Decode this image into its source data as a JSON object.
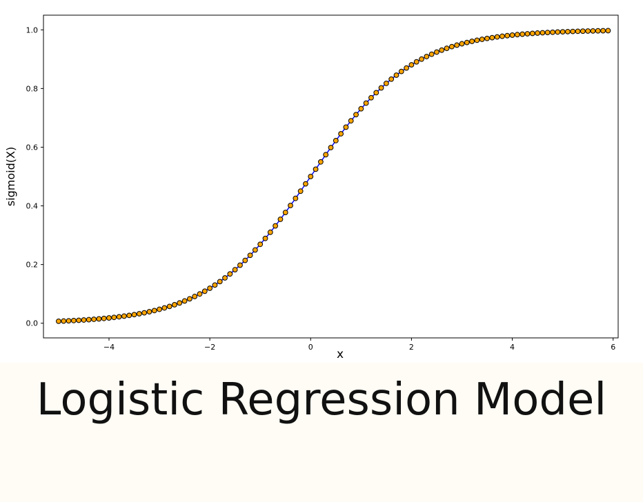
{
  "caption": "Logistic Regression Model",
  "chart_data": {
    "type": "line",
    "title": "",
    "xlabel": "x",
    "ylabel": "sigmoid(X)",
    "xlim": [
      -5.3,
      6.1
    ],
    "ylim": [
      -0.05,
      1.05
    ],
    "xticks": [
      -4,
      -2,
      0,
      2,
      4,
      6
    ],
    "xtick_labels": [
      "−4",
      "−2",
      "0",
      "2",
      "4",
      "6"
    ],
    "yticks": [
      0.0,
      0.2,
      0.4,
      0.6,
      0.8,
      1.0
    ],
    "ytick_labels": [
      "0.0",
      "0.2",
      "0.4",
      "0.6",
      "0.8",
      "1.0"
    ],
    "grid": false,
    "x_start": -5.0,
    "x_end": 5.9,
    "x_step": 0.1,
    "function": "sigmoid",
    "line_color": "#0000ff",
    "marker_fill": "#ffa500",
    "marker_edge": "#000000"
  }
}
